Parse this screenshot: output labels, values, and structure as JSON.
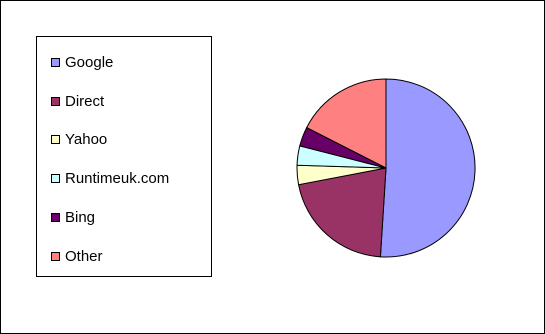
{
  "chart_data": {
    "type": "pie",
    "title": "",
    "legend_position": "left",
    "series": [
      {
        "categories": [
          "Google",
          "Direct",
          "Yahoo",
          "Runtimeuk.com",
          "Bing",
          "Other"
        ],
        "values": [
          51,
          21,
          3.5,
          3.5,
          3.5,
          17.5
        ],
        "colors": [
          "#9999ff",
          "#993366",
          "#ffffcc",
          "#ccffff",
          "#660066",
          "#ff8080"
        ]
      }
    ]
  }
}
